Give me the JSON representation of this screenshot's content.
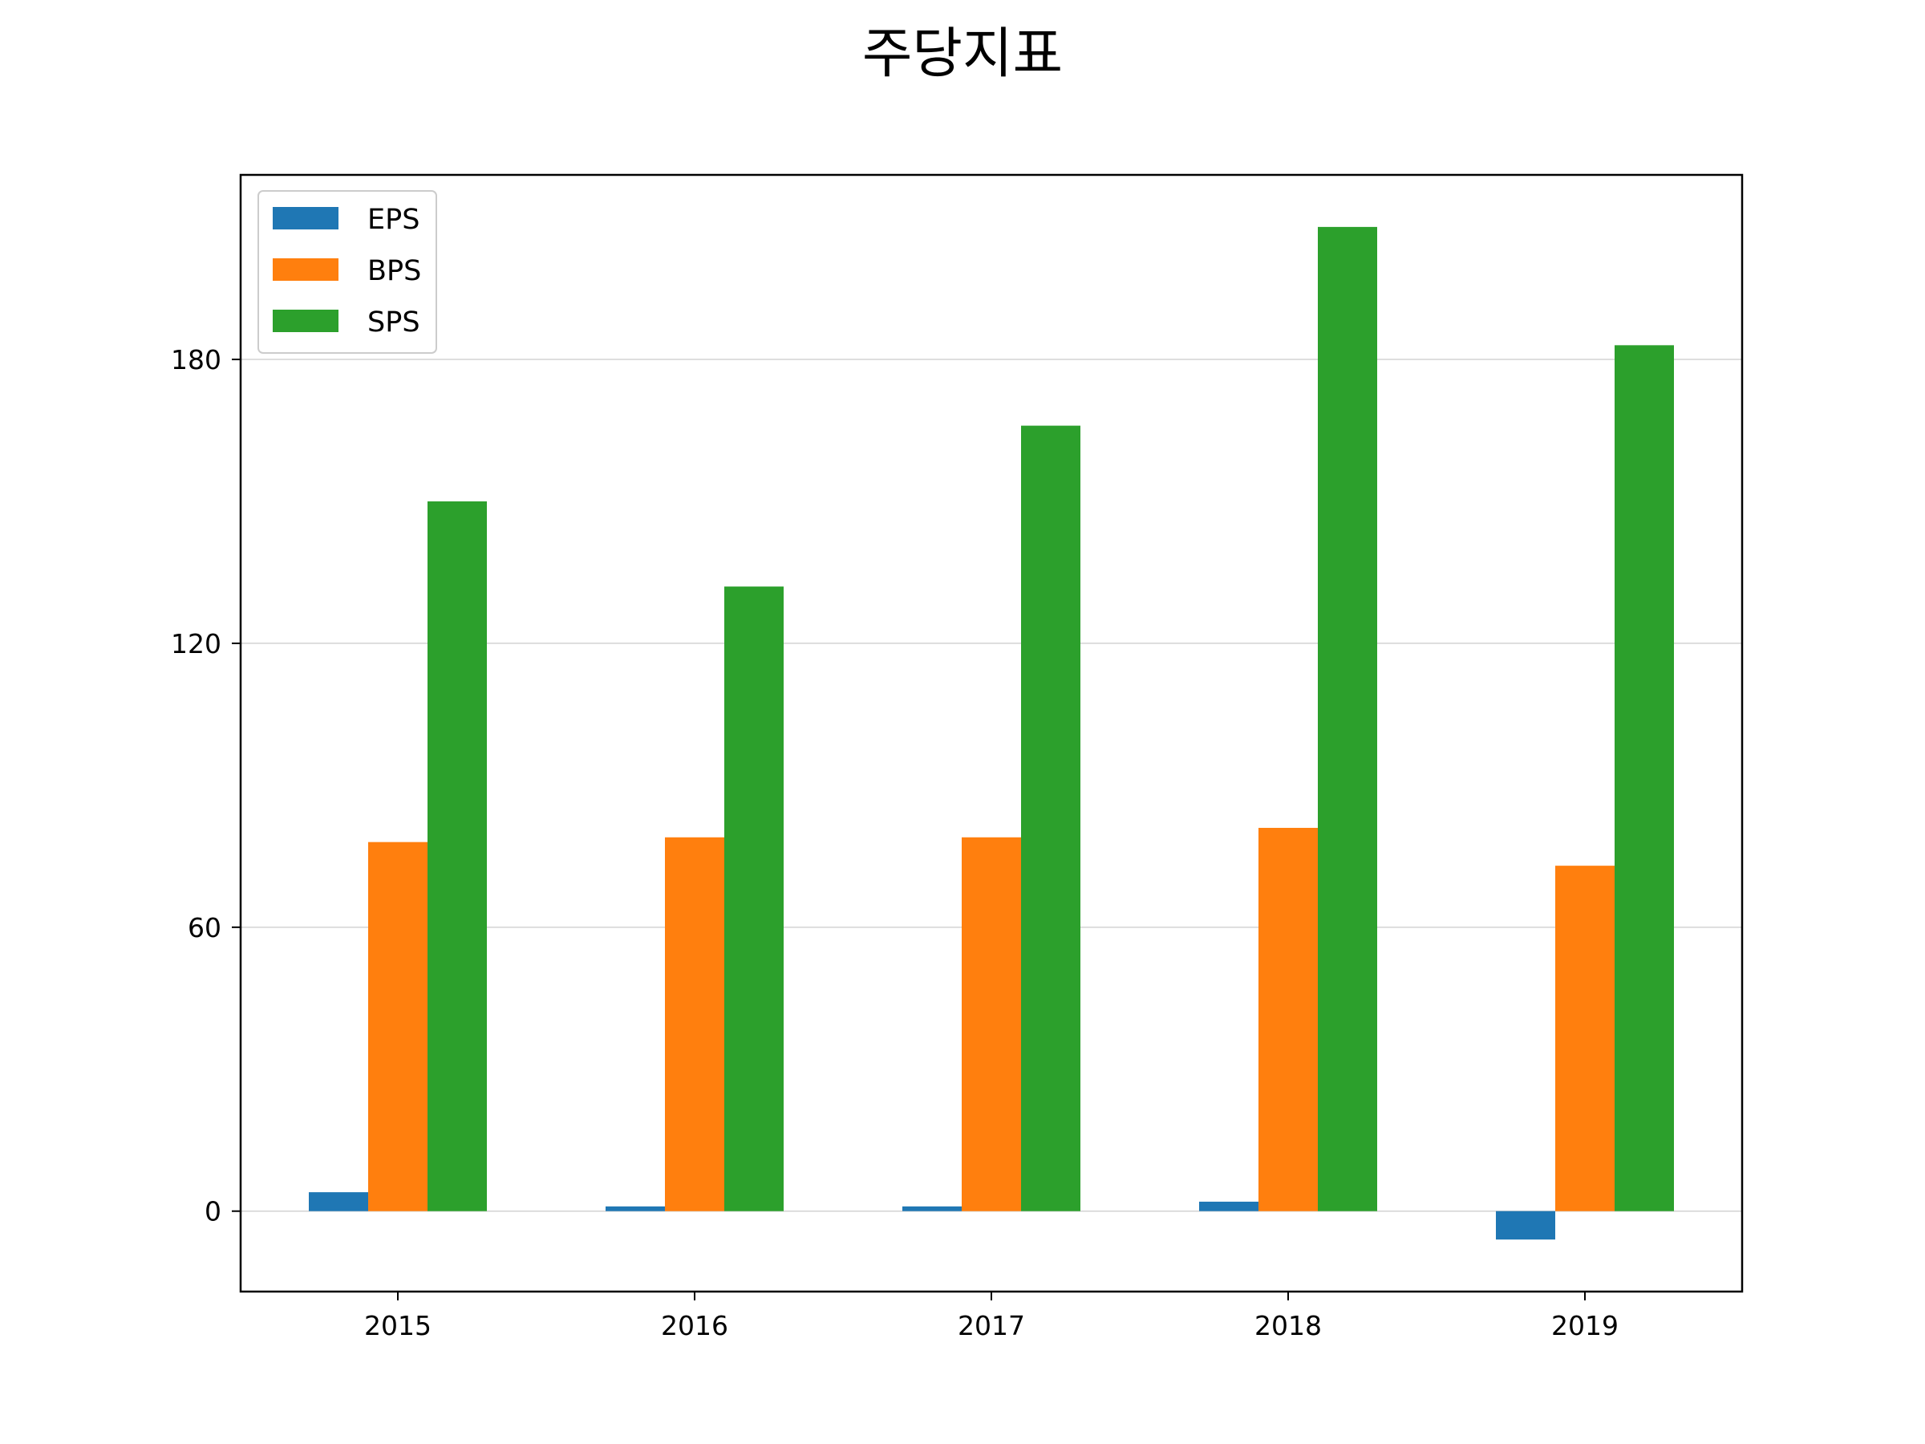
{
  "chart_data": {
    "type": "bar",
    "title": "주당지표",
    "xlabel": "",
    "ylabel": "",
    "categories": [
      "2015",
      "2016",
      "2017",
      "2018",
      "2019"
    ],
    "series": [
      {
        "name": "EPS",
        "color": "#1f77b4",
        "values": [
          4,
          1,
          1,
          2,
          -6
        ]
      },
      {
        "name": "BPS",
        "color": "#ff7f0e",
        "values": [
          78,
          79,
          79,
          81,
          73
        ]
      },
      {
        "name": "SPS",
        "color": "#2ca02c",
        "values": [
          150,
          132,
          166,
          208,
          183
        ]
      }
    ],
    "ylim": [
      -17,
      219
    ],
    "yticks": [
      0,
      60,
      120,
      180
    ],
    "ytick_labels": [
      "0",
      "60",
      "120",
      "180"
    ],
    "grid": "horizontal",
    "legend_position": "top-left"
  }
}
